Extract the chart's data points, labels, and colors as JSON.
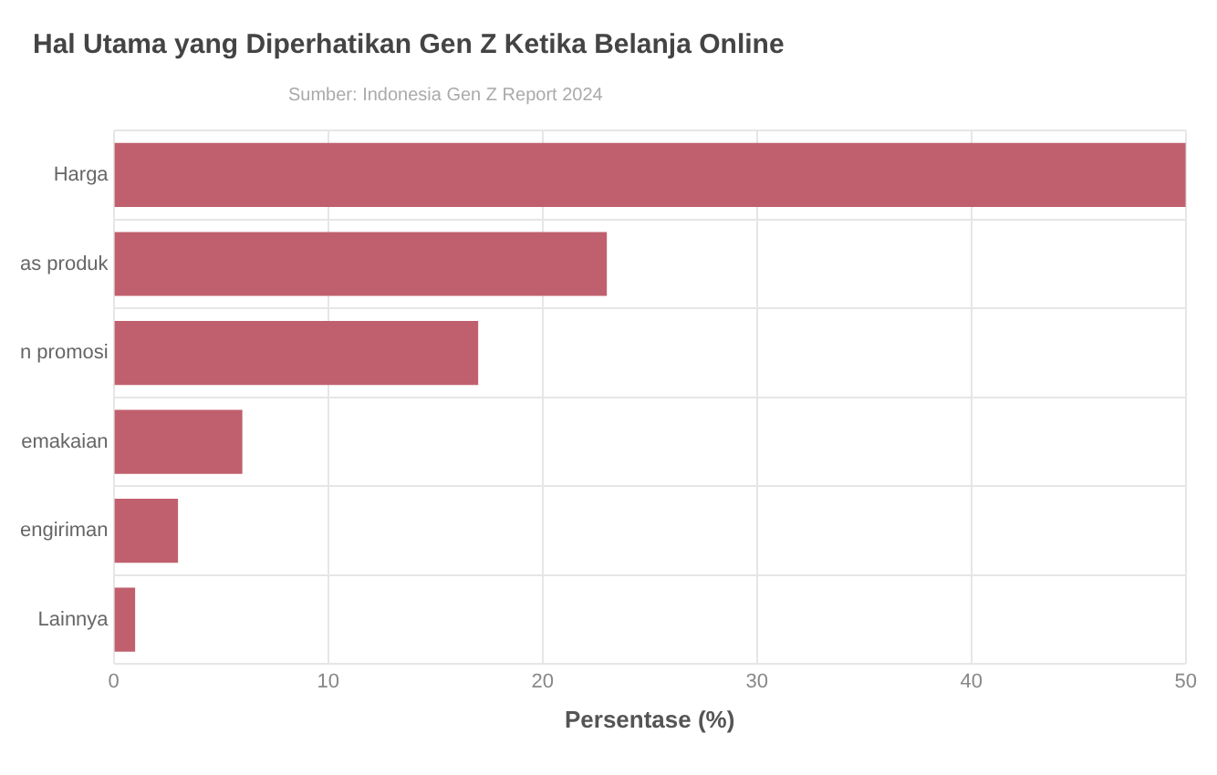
{
  "chart_data": {
    "type": "bar",
    "orientation": "horizontal",
    "title": "Hal Utama yang Diperhatikan Gen Z Ketika Belanja Online",
    "subtitle": "Sumber: Indonesia Gen Z Report 2024",
    "xlabel": "Persentase (%)",
    "categories": [
      "Harga",
      "as produk",
      "n promosi",
      "emakaian",
      "engiriman",
      "Lainnya"
    ],
    "values": [
      50,
      23,
      17,
      6,
      3,
      1
    ],
    "color": "#c0606e",
    "xlim": [
      0,
      50
    ],
    "xticks": [
      0,
      10,
      20,
      30,
      40,
      50
    ],
    "grid": true,
    "legend": false
  }
}
